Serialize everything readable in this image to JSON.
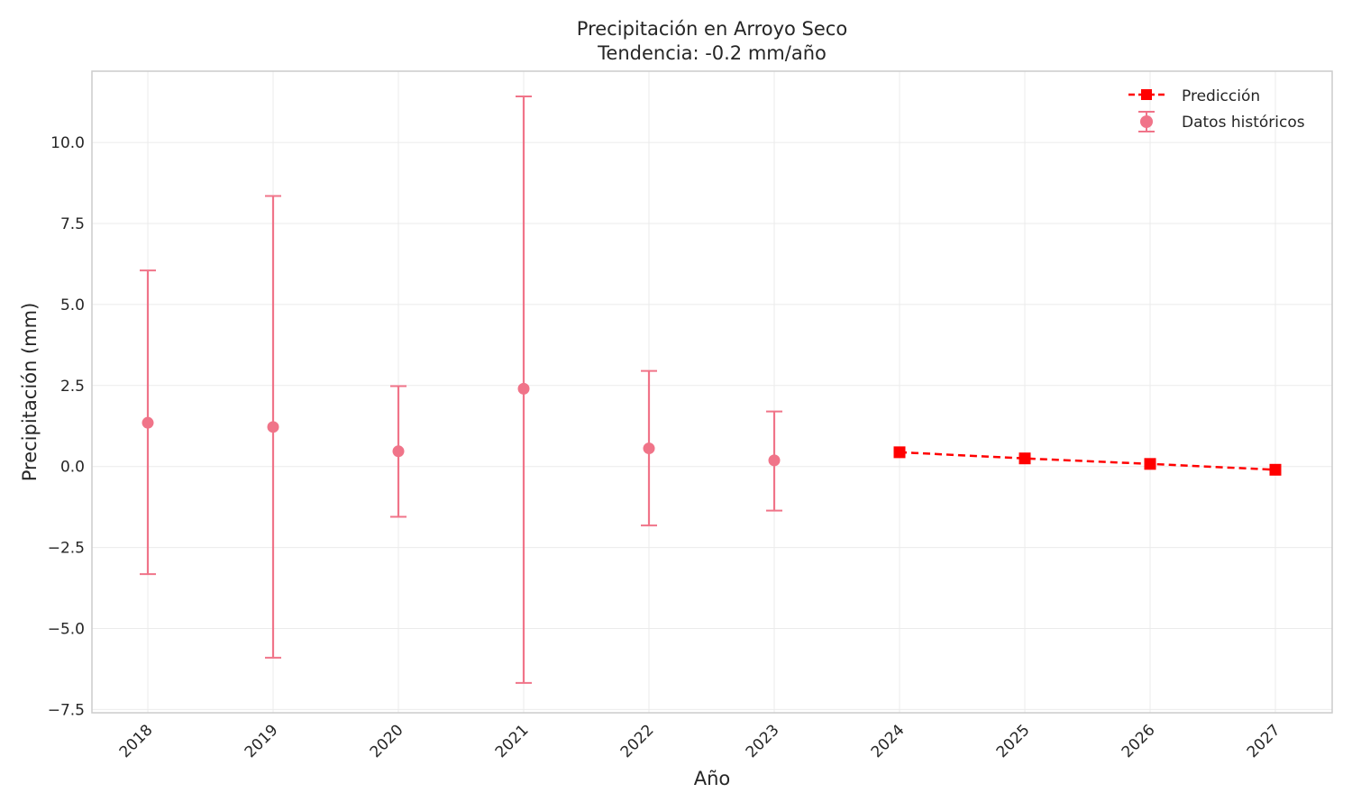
{
  "chart_data": {
    "type": "scatter",
    "title": [
      "Precipitación en Arroyo Seco",
      "Tendencia: -0.2 mm/año"
    ],
    "xlabel": "Año",
    "ylabel": "Precipitación (mm)",
    "x_categories": [
      "2018",
      "2019",
      "2020",
      "2021",
      "2022",
      "2023",
      "2024",
      "2025",
      "2026",
      "2027"
    ],
    "ylim": [
      -7.6,
      12.2
    ],
    "yticks": [
      -7.5,
      -5.0,
      -2.5,
      0.0,
      2.5,
      5.0,
      7.5,
      10.0
    ],
    "ytick_labels": [
      "−7.5",
      "−5.0",
      "−2.5",
      "0.0",
      "2.5",
      "5.0",
      "7.5",
      "10.0"
    ],
    "grid": true,
    "legend_position": "top-right",
    "series": [
      {
        "name": "Datos históricos",
        "kind": "errorbar",
        "color": "#f07489",
        "x": [
          "2018",
          "2019",
          "2020",
          "2021",
          "2022",
          "2023"
        ],
        "y": [
          1.35,
          1.22,
          0.47,
          2.4,
          0.56,
          0.19
        ],
        "yerr_low": [
          -3.32,
          -5.9,
          -1.55,
          -6.68,
          -1.82,
          -1.36
        ],
        "yerr_high": [
          6.05,
          8.35,
          2.48,
          11.42,
          2.95,
          1.7
        ]
      },
      {
        "name": "Predicción",
        "kind": "line",
        "color": "#ff0000",
        "marker": "square",
        "linestyle": "dashed",
        "x": [
          "2024",
          "2025",
          "2026",
          "2027"
        ],
        "y": [
          0.44,
          0.25,
          0.08,
          -0.1
        ]
      }
    ]
  }
}
